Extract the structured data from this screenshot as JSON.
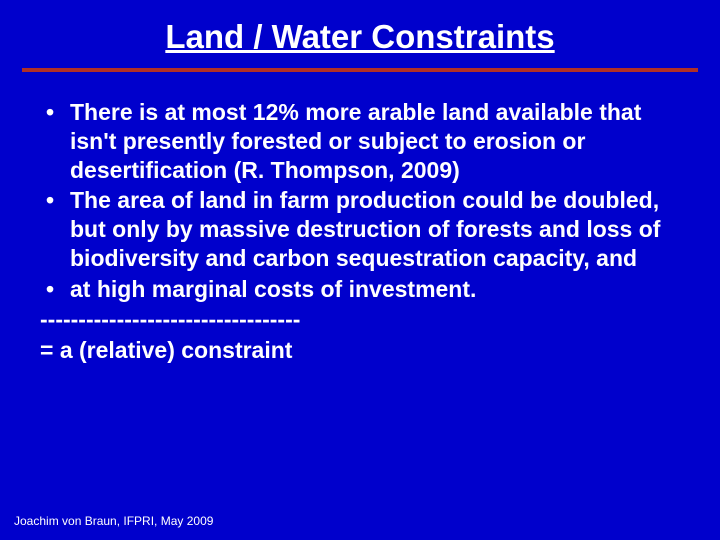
{
  "slide": {
    "background_color": "#0000cc",
    "rule_color": "#b03028",
    "text_color": "#ffffff",
    "title": "Land / Water Constraints",
    "title_fontsize": 33,
    "body_fontsize": 23,
    "bullets": [
      "There is at most 12% more arable land available that isn't presently forested or subject to erosion or desertification (R. Thompson, 2009)",
      "The area of land in farm production could be doubled, but only by massive destruction of forests and loss of biodiversity and carbon sequestration capacity, and",
      "at high marginal costs of investment."
    ],
    "dashes": "----------------------------------",
    "conclusion": "= a (relative) constraint",
    "footer": "Joachim von Braun, IFPRI, May 2009",
    "footer_fontsize": 12
  }
}
